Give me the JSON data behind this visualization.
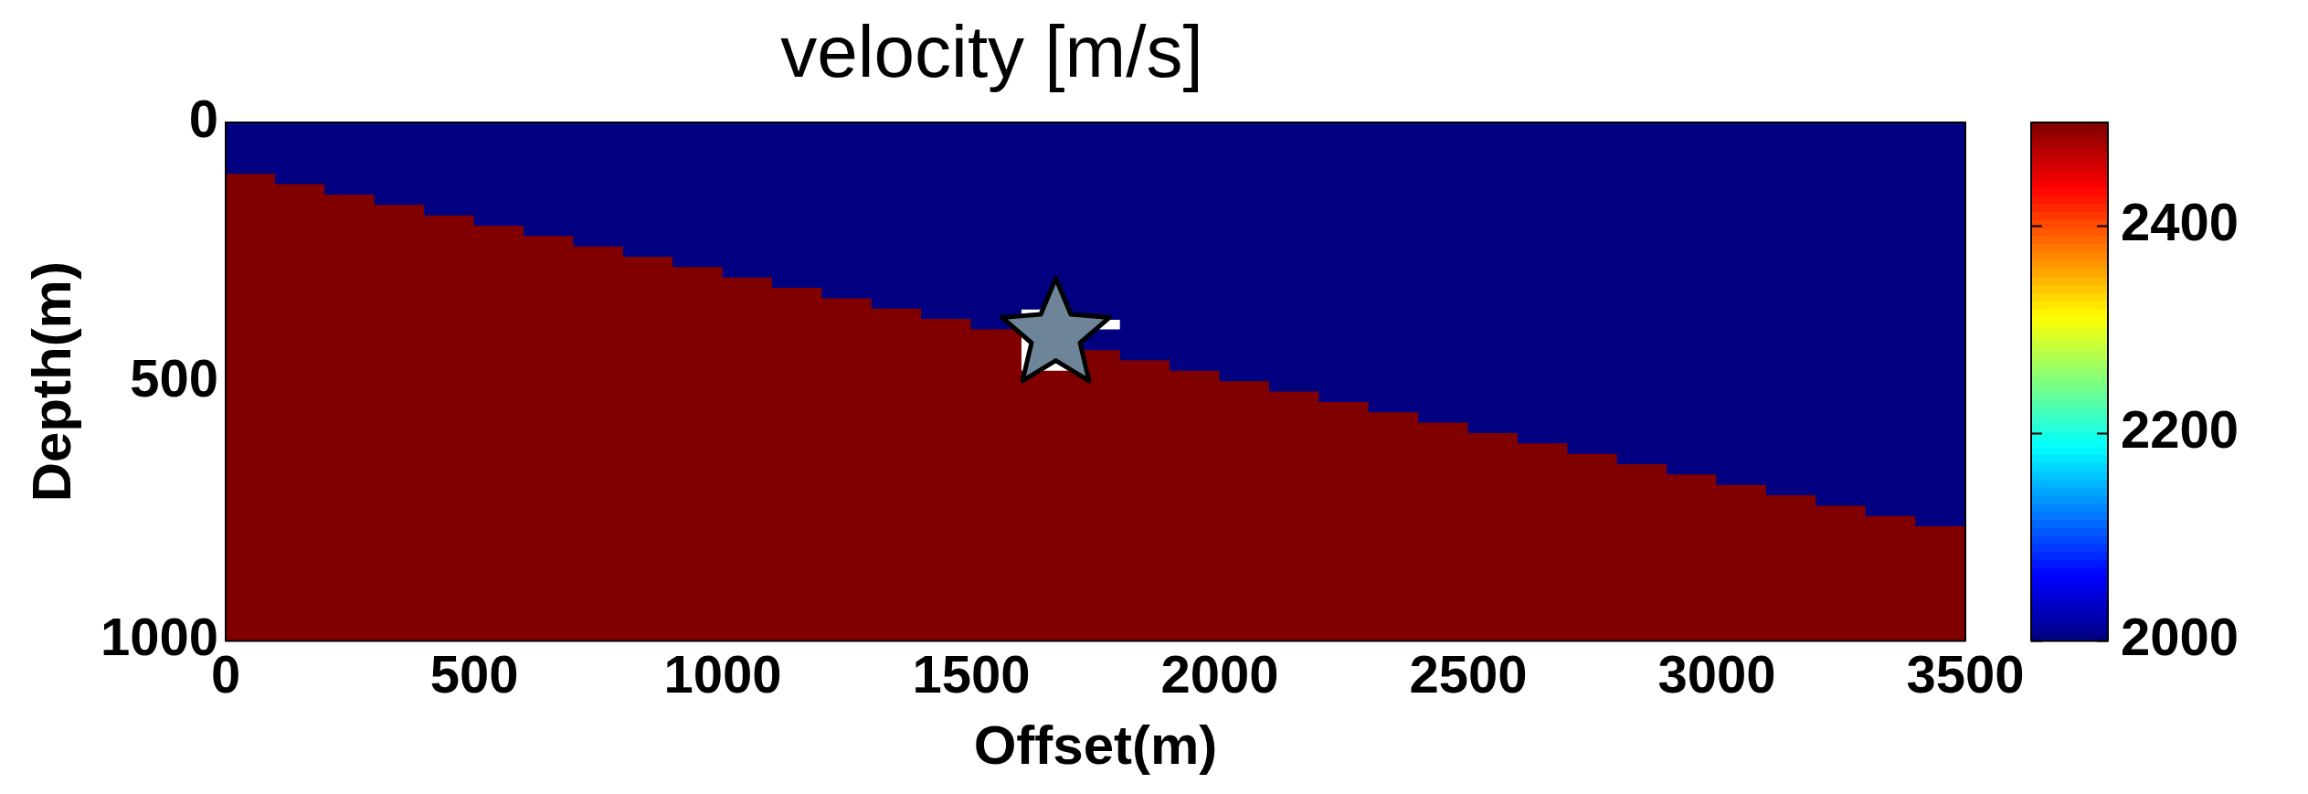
{
  "chart_data": {
    "type": "heatmap",
    "title": "velocity [m/s]",
    "xlabel": "Offset(m)",
    "ylabel": "Depth(m)",
    "xlim": [
      0,
      3500
    ],
    "xticks": [
      0,
      500,
      1000,
      1500,
      2000,
      2500,
      3000,
      3500
    ],
    "ylim": [
      1000,
      0
    ],
    "yticks": [
      0,
      500,
      1000
    ],
    "clim": [
      2000,
      2500
    ],
    "cticks": [
      2000,
      2200,
      2400
    ],
    "series": [
      {
        "type": "scatter",
        "x": [
          1670
        ],
        "values": [
          410
        ],
        "color": "#6d8499",
        "marker": "star"
      }
    ],
    "cells": [
      [
        2000,
        2000,
        2000,
        2000,
        2000,
        2000,
        2000,
        2000,
        2000,
        2000,
        2000,
        2000,
        2000,
        2000,
        2000,
        2000,
        2000,
        2000,
        2000,
        2000,
        2000,
        2000,
        2000,
        2000,
        2000,
        2000,
        2000,
        2000,
        2000,
        2000,
        2000,
        2000,
        2000,
        2000,
        2000
      ],
      [
        2000,
        2000,
        2000,
        2000,
        2000,
        2000,
        2000,
        2000,
        2000,
        2000,
        2000,
        2000,
        2000,
        2000,
        2000,
        2000,
        2000,
        2000,
        2000,
        2000,
        2000,
        2000,
        2000,
        2000,
        2000,
        2000,
        2000,
        2000,
        2000,
        2000,
        2000,
        2000,
        2000,
        2000,
        2000
      ],
      [
        2000,
        2000,
        2000,
        2000,
        2000,
        2000,
        2000,
        2000,
        2000,
        2000,
        2000,
        2000,
        2000,
        2000,
        2000,
        2000,
        2000,
        2000,
        2000,
        2000,
        2000,
        2000,
        2000,
        2000,
        2000,
        2000,
        2000,
        2000,
        2000,
        2000,
        2000,
        2000,
        2000,
        2000,
        2000
      ],
      [
        2000,
        2000,
        2000,
        2000,
        2000,
        2000,
        2000,
        2000,
        2000,
        2000,
        2000,
        2000,
        2000,
        2000,
        2000,
        2000,
        2000,
        2000,
        2000,
        2000,
        2000,
        2000,
        2000,
        2000,
        2000,
        2000,
        2000,
        2000,
        2000,
        2000,
        2000,
        2000,
        2000,
        2000,
        2000
      ],
      [
        2000,
        2000,
        2000,
        2000,
        2000,
        2000,
        2000,
        2000,
        2000,
        2000,
        2000,
        2000,
        2000,
        2000,
        2000,
        2000,
        2000,
        2000,
        2000,
        2000,
        2000,
        2000,
        2000,
        2000,
        2000,
        2000,
        2000,
        2000,
        2000,
        2000,
        2000,
        2000,
        2000,
        2000,
        2000
      ],
      [
        2500,
        2000,
        2000,
        2000,
        2000,
        2000,
        2000,
        2000,
        2000,
        2000,
        2000,
        2000,
        2000,
        2000,
        2000,
        2000,
        2000,
        2000,
        2000,
        2000,
        2000,
        2000,
        2000,
        2000,
        2000,
        2000,
        2000,
        2000,
        2000,
        2000,
        2000,
        2000,
        2000,
        2000,
        2000
      ],
      [
        2500,
        2500,
        2000,
        2000,
        2000,
        2000,
        2000,
        2000,
        2000,
        2000,
        2000,
        2000,
        2000,
        2000,
        2000,
        2000,
        2000,
        2000,
        2000,
        2000,
        2000,
        2000,
        2000,
        2000,
        2000,
        2000,
        2000,
        2000,
        2000,
        2000,
        2000,
        2000,
        2000,
        2000,
        2000
      ],
      [
        2500,
        2500,
        2500,
        2000,
        2000,
        2000,
        2000,
        2000,
        2000,
        2000,
        2000,
        2000,
        2000,
        2000,
        2000,
        2000,
        2000,
        2000,
        2000,
        2000,
        2000,
        2000,
        2000,
        2000,
        2000,
        2000,
        2000,
        2000,
        2000,
        2000,
        2000,
        2000,
        2000,
        2000,
        2000
      ],
      [
        2500,
        2500,
        2500,
        2500,
        2000,
        2000,
        2000,
        2000,
        2000,
        2000,
        2000,
        2000,
        2000,
        2000,
        2000,
        2000,
        2000,
        2000,
        2000,
        2000,
        2000,
        2000,
        2000,
        2000,
        2000,
        2000,
        2000,
        2000,
        2000,
        2000,
        2000,
        2000,
        2000,
        2000,
        2000
      ],
      [
        2500,
        2500,
        2500,
        2500,
        2500,
        2000,
        2000,
        2000,
        2000,
        2000,
        2000,
        2000,
        2000,
        2000,
        2000,
        2000,
        2000,
        2000,
        2000,
        2000,
        2000,
        2000,
        2000,
        2000,
        2000,
        2000,
        2000,
        2000,
        2000,
        2000,
        2000,
        2000,
        2000,
        2000,
        2000
      ],
      [
        2500,
        2500,
        2500,
        2500,
        2500,
        2500,
        2000,
        2000,
        2000,
        2000,
        2000,
        2000,
        2000,
        2000,
        2000,
        2000,
        2000,
        2000,
        2000,
        2000,
        2000,
        2000,
        2000,
        2000,
        2000,
        2000,
        2000,
        2000,
        2000,
        2000,
        2000,
        2000,
        2000,
        2000,
        2000
      ],
      [
        2500,
        2500,
        2500,
        2500,
        2500,
        2500,
        2500,
        2000,
        2000,
        2000,
        2000,
        2000,
        2000,
        2000,
        2000,
        2000,
        2000,
        2000,
        2000,
        2000,
        2000,
        2000,
        2000,
        2000,
        2000,
        2000,
        2000,
        2000,
        2000,
        2000,
        2000,
        2000,
        2000,
        2000,
        2000
      ],
      [
        2500,
        2500,
        2500,
        2500,
        2500,
        2500,
        2500,
        2500,
        2000,
        2000,
        2000,
        2000,
        2000,
        2000,
        2000,
        2000,
        2000,
        2000,
        2000,
        2000,
        2000,
        2000,
        2000,
        2000,
        2000,
        2000,
        2000,
        2000,
        2000,
        2000,
        2000,
        2000,
        2000,
        2000,
        2000
      ],
      [
        2500,
        2500,
        2500,
        2500,
        2500,
        2500,
        2500,
        2500,
        2500,
        2000,
        2000,
        2000,
        2000,
        2000,
        2000,
        2000,
        2000,
        2000,
        2000,
        2000,
        2000,
        2000,
        2000,
        2000,
        2000,
        2000,
        2000,
        2000,
        2000,
        2000,
        2000,
        2000,
        2000,
        2000,
        2000
      ],
      [
        2500,
        2500,
        2500,
        2500,
        2500,
        2500,
        2500,
        2500,
        2500,
        2500,
        2000,
        2000,
        2000,
        2000,
        2000,
        2000,
        2000,
        2000,
        2000,
        2000,
        2000,
        2000,
        2000,
        2000,
        2000,
        2000,
        2000,
        2000,
        2000,
        2000,
        2000,
        2000,
        2000,
        2000,
        2000
      ],
      [
        2500,
        2500,
        2500,
        2500,
        2500,
        2500,
        2500,
        2500,
        2500,
        2500,
        2500,
        2000,
        2000,
        2000,
        2000,
        2000,
        2000,
        2000,
        2000,
        2000,
        2000,
        2000,
        2000,
        2000,
        2000,
        2000,
        2000,
        2000,
        2000,
        2000,
        2000,
        2000,
        2000,
        2000,
        2000
      ],
      [
        2500,
        2500,
        2500,
        2500,
        2500,
        2500,
        2500,
        2500,
        2500,
        2500,
        2500,
        2500,
        2000,
        2000,
        2000,
        2000,
        2000,
        2000,
        2000,
        2000,
        2000,
        2000,
        2000,
        2000,
        2000,
        2000,
        2000,
        2000,
        2000,
        2000,
        2000,
        2000,
        2000,
        2000,
        2000
      ],
      [
        2500,
        2500,
        2500,
        2500,
        2500,
        2500,
        2500,
        2500,
        2500,
        2500,
        2500,
        2500,
        2500,
        2000,
        2000,
        2000,
        2000,
        2000,
        2000,
        2000,
        2000,
        2000,
        2000,
        2000,
        2000,
        2000,
        2000,
        2000,
        2000,
        2000,
        2000,
        2000,
        2000,
        2000,
        2000
      ],
      [
        2500,
        2500,
        2500,
        2500,
        2500,
        2500,
        2500,
        2500,
        2500,
        2500,
        2500,
        2500,
        2500,
        2500,
        2000,
        2000,
        null,
        2000,
        2000,
        2000,
        2000,
        2000,
        2000,
        2000,
        2000,
        2000,
        2000,
        2000,
        2000,
        2000,
        2000,
        2000,
        2000,
        2000,
        2000
      ],
      [
        2500,
        2500,
        2500,
        2500,
        2500,
        2500,
        2500,
        2500,
        2500,
        2500,
        2500,
        2500,
        2500,
        2500,
        2500,
        2000,
        null,
        null,
        2000,
        2000,
        2000,
        2000,
        2000,
        2000,
        2000,
        2000,
        2000,
        2000,
        2000,
        2000,
        2000,
        2000,
        2000,
        2000,
        2000
      ],
      [
        2500,
        2500,
        2500,
        2500,
        2500,
        2500,
        2500,
        2500,
        2500,
        2500,
        2500,
        2500,
        2500,
        2500,
        2500,
        2500,
        null,
        2000,
        2000,
        2000,
        2000,
        2000,
        2000,
        2000,
        2000,
        2000,
        2000,
        2000,
        2000,
        2000,
        2000,
        2000,
        2000,
        2000,
        2000
      ],
      [
        2500,
        2500,
        2500,
        2500,
        2500,
        2500,
        2500,
        2500,
        2500,
        2500,
        2500,
        2500,
        2500,
        2500,
        2500,
        2500,
        null,
        2000,
        2000,
        2000,
        2000,
        2000,
        2000,
        2000,
        2000,
        2000,
        2000,
        2000,
        2000,
        2000,
        2000,
        2000,
        2000,
        2000,
        2000
      ],
      [
        2500,
        2500,
        2500,
        2500,
        2500,
        2500,
        2500,
        2500,
        2500,
        2500,
        2500,
        2500,
        2500,
        2500,
        2500,
        2500,
        null,
        2500,
        2000,
        2000,
        2000,
        2000,
        2000,
        2000,
        2000,
        2000,
        2000,
        2000,
        2000,
        2000,
        2000,
        2000,
        2000,
        2000,
        2000
      ],
      [
        2500,
        2500,
        2500,
        2500,
        2500,
        2500,
        2500,
        2500,
        2500,
        2500,
        2500,
        2500,
        2500,
        2500,
        2500,
        2500,
        null,
        2500,
        2500,
        2000,
        2000,
        2000,
        2000,
        2000,
        2000,
        2000,
        2000,
        2000,
        2000,
        2000,
        2000,
        2000,
        2000,
        2000,
        2000
      ],
      [
        2500,
        2500,
        2500,
        2500,
        2500,
        2500,
        2500,
        2500,
        2500,
        2500,
        2500,
        2500,
        2500,
        2500,
        2500,
        2500,
        2500,
        2500,
        2500,
        2500,
        2000,
        2000,
        2000,
        2000,
        2000,
        2000,
        2000,
        2000,
        2000,
        2000,
        2000,
        2000,
        2000,
        2000,
        2000
      ],
      [
        2500,
        2500,
        2500,
        2500,
        2500,
        2500,
        2500,
        2500,
        2500,
        2500,
        2500,
        2500,
        2500,
        2500,
        2500,
        2500,
        2500,
        2500,
        2500,
        2500,
        2500,
        2000,
        2000,
        2000,
        2000,
        2000,
        2000,
        2000,
        2000,
        2000,
        2000,
        2000,
        2000,
        2000,
        2000
      ],
      [
        2500,
        2500,
        2500,
        2500,
        2500,
        2500,
        2500,
        2500,
        2500,
        2500,
        2500,
        2500,
        2500,
        2500,
        2500,
        2500,
        2500,
        2500,
        2500,
        2500,
        2500,
        2500,
        2000,
        2000,
        2000,
        2000,
        2000,
        2000,
        2000,
        2000,
        2000,
        2000,
        2000,
        2000,
        2000
      ],
      [
        2500,
        2500,
        2500,
        2500,
        2500,
        2500,
        2500,
        2500,
        2500,
        2500,
        2500,
        2500,
        2500,
        2500,
        2500,
        2500,
        2500,
        2500,
        2500,
        2500,
        2500,
        2500,
        2500,
        2000,
        2000,
        2000,
        2000,
        2000,
        2000,
        2000,
        2000,
        2000,
        2000,
        2000,
        2000
      ],
      [
        2500,
        2500,
        2500,
        2500,
        2500,
        2500,
        2500,
        2500,
        2500,
        2500,
        2500,
        2500,
        2500,
        2500,
        2500,
        2500,
        2500,
        2500,
        2500,
        2500,
        2500,
        2500,
        2500,
        2500,
        2000,
        2000,
        2000,
        2000,
        2000,
        2000,
        2000,
        2000,
        2000,
        2000,
        2000
      ],
      [
        2500,
        2500,
        2500,
        2500,
        2500,
        2500,
        2500,
        2500,
        2500,
        2500,
        2500,
        2500,
        2500,
        2500,
        2500,
        2500,
        2500,
        2500,
        2500,
        2500,
        2500,
        2500,
        2500,
        2500,
        2500,
        2000,
        2000,
        2000,
        2000,
        2000,
        2000,
        2000,
        2000,
        2000,
        2000
      ],
      [
        2500,
        2500,
        2500,
        2500,
        2500,
        2500,
        2500,
        2500,
        2500,
        2500,
        2500,
        2500,
        2500,
        2500,
        2500,
        2500,
        2500,
        2500,
        2500,
        2500,
        2500,
        2500,
        2500,
        2500,
        2500,
        2500,
        2000,
        2000,
        2000,
        2000,
        2000,
        2000,
        2000,
        2000,
        2000
      ],
      [
        2500,
        2500,
        2500,
        2500,
        2500,
        2500,
        2500,
        2500,
        2500,
        2500,
        2500,
        2500,
        2500,
        2500,
        2500,
        2500,
        2500,
        2500,
        2500,
        2500,
        2500,
        2500,
        2500,
        2500,
        2500,
        2500,
        2500,
        2000,
        2000,
        2000,
        2000,
        2000,
        2000,
        2000,
        2000
      ],
      [
        2500,
        2500,
        2500,
        2500,
        2500,
        2500,
        2500,
        2500,
        2500,
        2500,
        2500,
        2500,
        2500,
        2500,
        2500,
        2500,
        2500,
        2500,
        2500,
        2500,
        2500,
        2500,
        2500,
        2500,
        2500,
        2500,
        2500,
        2500,
        2000,
        2000,
        2000,
        2000,
        2000,
        2000,
        2000
      ],
      [
        2500,
        2500,
        2500,
        2500,
        2500,
        2500,
        2500,
        2500,
        2500,
        2500,
        2500,
        2500,
        2500,
        2500,
        2500,
        2500,
        2500,
        2500,
        2500,
        2500,
        2500,
        2500,
        2500,
        2500,
        2500,
        2500,
        2500,
        2500,
        2500,
        2000,
        2000,
        2000,
        2000,
        2000,
        2000
      ],
      [
        2500,
        2500,
        2500,
        2500,
        2500,
        2500,
        2500,
        2500,
        2500,
        2500,
        2500,
        2500,
        2500,
        2500,
        2500,
        2500,
        2500,
        2500,
        2500,
        2500,
        2500,
        2500,
        2500,
        2500,
        2500,
        2500,
        2500,
        2500,
        2500,
        2500,
        2000,
        2000,
        2000,
        2000,
        2000
      ],
      [
        2500,
        2500,
        2500,
        2500,
        2500,
        2500,
        2500,
        2500,
        2500,
        2500,
        2500,
        2500,
        2500,
        2500,
        2500,
        2500,
        2500,
        2500,
        2500,
        2500,
        2500,
        2500,
        2500,
        2500,
        2500,
        2500,
        2500,
        2500,
        2500,
        2500,
        2500,
        2000,
        2000,
        2000,
        2000
      ],
      [
        2500,
        2500,
        2500,
        2500,
        2500,
        2500,
        2500,
        2500,
        2500,
        2500,
        2500,
        2500,
        2500,
        2500,
        2500,
        2500,
        2500,
        2500,
        2500,
        2500,
        2500,
        2500,
        2500,
        2500,
        2500,
        2500,
        2500,
        2500,
        2500,
        2500,
        2500,
        2500,
        2000,
        2000,
        2000
      ],
      [
        2500,
        2500,
        2500,
        2500,
        2500,
        2500,
        2500,
        2500,
        2500,
        2500,
        2500,
        2500,
        2500,
        2500,
        2500,
        2500,
        2500,
        2500,
        2500,
        2500,
        2500,
        2500,
        2500,
        2500,
        2500,
        2500,
        2500,
        2500,
        2500,
        2500,
        2500,
        2500,
        2500,
        2000,
        2000
      ],
      [
        2500,
        2500,
        2500,
        2500,
        2500,
        2500,
        2500,
        2500,
        2500,
        2500,
        2500,
        2500,
        2500,
        2500,
        2500,
        2500,
        2500,
        2500,
        2500,
        2500,
        2500,
        2500,
        2500,
        2500,
        2500,
        2500,
        2500,
        2500,
        2500,
        2500,
        2500,
        2500,
        2500,
        2500,
        2000
      ],
      [
        2500,
        2500,
        2500,
        2500,
        2500,
        2500,
        2500,
        2500,
        2500,
        2500,
        2500,
        2500,
        2500,
        2500,
        2500,
        2500,
        2500,
        2500,
        2500,
        2500,
        2500,
        2500,
        2500,
        2500,
        2500,
        2500,
        2500,
        2500,
        2500,
        2500,
        2500,
        2500,
        2500,
        2500,
        2500
      ],
      [
        2500,
        2500,
        2500,
        2500,
        2500,
        2500,
        2500,
        2500,
        2500,
        2500,
        2500,
        2500,
        2500,
        2500,
        2500,
        2500,
        2500,
        2500,
        2500,
        2500,
        2500,
        2500,
        2500,
        2500,
        2500,
        2500,
        2500,
        2500,
        2500,
        2500,
        2500,
        2500,
        2500,
        2500,
        2500
      ],
      [
        2500,
        2500,
        2500,
        2500,
        2500,
        2500,
        2500,
        2500,
        2500,
        2500,
        2500,
        2500,
        2500,
        2500,
        2500,
        2500,
        2500,
        2500,
        2500,
        2500,
        2500,
        2500,
        2500,
        2500,
        2500,
        2500,
        2500,
        2500,
        2500,
        2500,
        2500,
        2500,
        2500,
        2500,
        2500
      ],
      [
        2500,
        2500,
        2500,
        2500,
        2500,
        2500,
        2500,
        2500,
        2500,
        2500,
        2500,
        2500,
        2500,
        2500,
        2500,
        2500,
        2500,
        2500,
        2500,
        2500,
        2500,
        2500,
        2500,
        2500,
        2500,
        2500,
        2500,
        2500,
        2500,
        2500,
        2500,
        2500,
        2500,
        2500,
        2500
      ],
      [
        2500,
        2500,
        2500,
        2500,
        2500,
        2500,
        2500,
        2500,
        2500,
        2500,
        2500,
        2500,
        2500,
        2500,
        2500,
        2500,
        2500,
        2500,
        2500,
        2500,
        2500,
        2500,
        2500,
        2500,
        2500,
        2500,
        2500,
        2500,
        2500,
        2500,
        2500,
        2500,
        2500,
        2500,
        2500
      ],
      [
        2500,
        2500,
        2500,
        2500,
        2500,
        2500,
        2500,
        2500,
        2500,
        2500,
        2500,
        2500,
        2500,
        2500,
        2500,
        2500,
        2500,
        2500,
        2500,
        2500,
        2500,
        2500,
        2500,
        2500,
        2500,
        2500,
        2500,
        2500,
        2500,
        2500,
        2500,
        2500,
        2500,
        2500,
        2500
      ],
      [
        2500,
        2500,
        2500,
        2500,
        2500,
        2500,
        2500,
        2500,
        2500,
        2500,
        2500,
        2500,
        2500,
        2500,
        2500,
        2500,
        2500,
        2500,
        2500,
        2500,
        2500,
        2500,
        2500,
        2500,
        2500,
        2500,
        2500,
        2500,
        2500,
        2500,
        2500,
        2500,
        2500,
        2500,
        2500
      ],
      [
        2500,
        2500,
        2500,
        2500,
        2500,
        2500,
        2500,
        2500,
        2500,
        2500,
        2500,
        2500,
        2500,
        2500,
        2500,
        2500,
        2500,
        2500,
        2500,
        2500,
        2500,
        2500,
        2500,
        2500,
        2500,
        2500,
        2500,
        2500,
        2500,
        2500,
        2500,
        2500,
        2500,
        2500,
        2500
      ],
      [
        2500,
        2500,
        2500,
        2500,
        2500,
        2500,
        2500,
        2500,
        2500,
        2500,
        2500,
        2500,
        2500,
        2500,
        2500,
        2500,
        2500,
        2500,
        2500,
        2500,
        2500,
        2500,
        2500,
        2500,
        2500,
        2500,
        2500,
        2500,
        2500,
        2500,
        2500,
        2500,
        2500,
        2500,
        2500
      ],
      [
        2500,
        2500,
        2500,
        2500,
        2500,
        2500,
        2500,
        2500,
        2500,
        2500,
        2500,
        2500,
        2500,
        2500,
        2500,
        2500,
        2500,
        2500,
        2500,
        2500,
        2500,
        2500,
        2500,
        2500,
        2500,
        2500,
        2500,
        2500,
        2500,
        2500,
        2500,
        2500,
        2500,
        2500,
        2500
      ],
      [
        2500,
        2500,
        2500,
        2500,
        2500,
        2500,
        2500,
        2500,
        2500,
        2500,
        2500,
        2500,
        2500,
        2500,
        2500,
        2500,
        2500,
        2500,
        2500,
        2500,
        2500,
        2500,
        2500,
        2500,
        2500,
        2500,
        2500,
        2500,
        2500,
        2500,
        2500,
        2500,
        2500,
        2500,
        2500
      ]
    ]
  }
}
